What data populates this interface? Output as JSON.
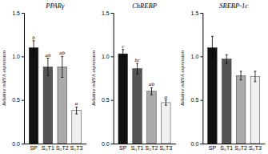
{
  "chart_data": [
    {
      "type": "bar",
      "title": "PPARγ",
      "categories": [
        "SP",
        "S₀T1",
        "S₀T2",
        "S₀T3"
      ],
      "values": [
        1.1,
        0.88,
        0.88,
        0.38
      ],
      "errors": [
        0.08,
        0.1,
        0.12,
        0.04
      ],
      "annotations": [
        "b",
        "ab",
        "ab",
        "a"
      ],
      "colors": [
        "#111111",
        "#555555",
        "#aaaaaa",
        "#f0f0f0"
      ],
      "ylabel": "Relative mRNA expression",
      "ylim": [
        0.0,
        1.5
      ],
      "yticks": [
        {
          "value": 0.0,
          "label": "0.0"
        },
        0.5,
        {
          "value": 1.0,
          "label": "1.0"
        },
        1.5
      ]
    },
    {
      "type": "bar",
      "title": "ChREBP",
      "categories": [
        "SP",
        "S₀T1",
        "S₀T2",
        "S₀T3"
      ],
      "values": [
        1.03,
        0.86,
        0.6,
        0.47
      ],
      "errors": [
        0.05,
        0.06,
        0.04,
        0.03
      ],
      "annotations": [
        "c",
        "bc",
        "ab",
        "a"
      ],
      "colors": [
        "#111111",
        "#555555",
        "#aaaaaa",
        "#f0f0f0"
      ],
      "ylabel": "Relative mRNA expression",
      "ylim": [
        0.0,
        1.5
      ],
      "yticks": [
        {
          "value": 0.0,
          "label": "0.0"
        },
        0.5,
        {
          "value": 1.0,
          "label": "1.0"
        },
        1.5
      ]
    },
    {
      "type": "bar",
      "title": "SREBP-1c",
      "categories": [
        "SP",
        "S₀T1",
        "S₀T2",
        "S₀T3"
      ],
      "values": [
        1.1,
        0.97,
        0.78,
        0.77
      ],
      "errors": [
        0.13,
        0.05,
        0.05,
        0.06
      ],
      "colors": [
        "#111111",
        "#555555",
        "#aaaaaa",
        "#f0f0f0"
      ],
      "ylabel": "Relative mRNA expression",
      "ylim": [
        0.0,
        1.5
      ],
      "yticks": [
        {
          "value": 0.0,
          "label": "0.0"
        },
        0.5,
        {
          "value": 1.0,
          "label": "1.0"
        },
        1.5
      ]
    }
  ]
}
